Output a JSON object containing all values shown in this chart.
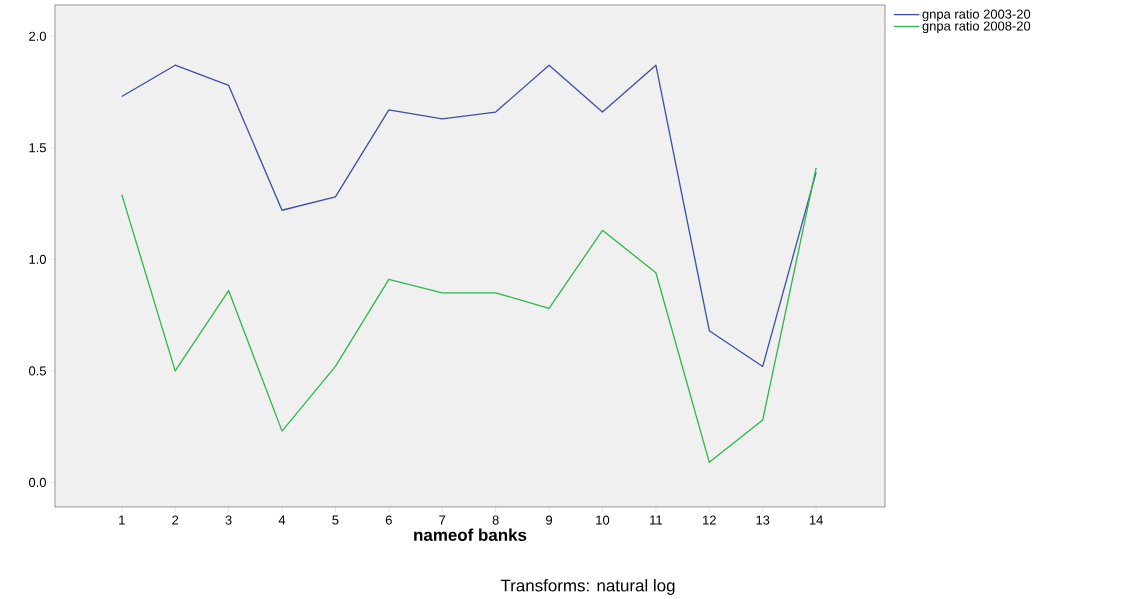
{
  "chart_data": {
    "type": "line",
    "xlabel": "nameof banks",
    "categories": [
      "1",
      "2",
      "3",
      "4",
      "5",
      "6",
      "7",
      "8",
      "9",
      "10",
      "11",
      "12",
      "13",
      "14"
    ],
    "series": [
      {
        "name": "gnpa ratio 2003-20",
        "color": "#3b4fa8",
        "values": [
          1.73,
          1.87,
          1.78,
          1.22,
          1.28,
          1.67,
          1.63,
          1.66,
          1.87,
          1.66,
          1.87,
          0.68,
          0.52,
          1.39
        ]
      },
      {
        "name": "gnpa ratio 2008-20",
        "color": "#2db84a",
        "values": [
          1.29,
          0.5,
          0.86,
          0.23,
          0.52,
          0.91,
          0.85,
          0.85,
          0.78,
          1.13,
          0.94,
          0.09,
          0.28,
          1.41
        ]
      }
    ],
    "ylim": [
      -0.11,
      2.14
    ],
    "yticks": [
      {
        "value": 0,
        "label": "0.0"
      },
      {
        "value": 0.5,
        "label": "0.5"
      },
      {
        "value": 1,
        "label": "1.0"
      },
      {
        "value": 1.5,
        "label": "1.5"
      },
      {
        "value": 2,
        "label": "2.0"
      }
    ],
    "legend": "top right",
    "grid": false,
    "annotations": [
      "Transforms: natural log"
    ]
  }
}
